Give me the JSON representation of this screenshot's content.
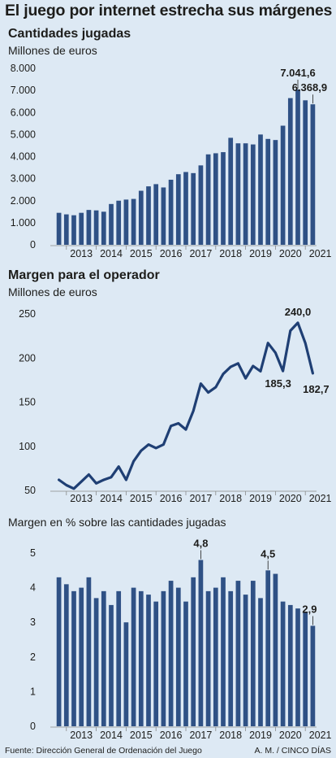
{
  "header": {
    "title": "El juego por internet estrecha sus márgenes"
  },
  "sections": [
    {
      "title": "Cantidades jugadas",
      "subtitle": "Millones de euros"
    },
    {
      "title": "Margen para el operador",
      "subtitle": "Millones de euros"
    },
    {
      "title": "",
      "subtitle": "Margen en % sobre las cantidades jugadas"
    }
  ],
  "footer": {
    "source": "Fuente: Dirección General de Ordenación del Juego",
    "credit": "A. M. / CINCO DÍAS"
  },
  "colors": {
    "bar": "#2f5185",
    "line": "#1f3f74",
    "axis": "#8a8a8a",
    "background": "#dde9f4"
  },
  "chart_data": [
    {
      "type": "bar",
      "title": "Cantidades jugadas",
      "ylabel": "Millones de euros",
      "ylim": [
        0,
        8000
      ],
      "yticks": [
        0,
        1000,
        2000,
        3000,
        4000,
        5000,
        6000,
        7000,
        8000
      ],
      "ytick_labels": [
        "0",
        "1.000",
        "2.000",
        "3.000",
        "4.000",
        "5.000",
        "6.000",
        "7.000",
        "8.000"
      ],
      "xtick_labels": [
        "2013",
        "2014",
        "2015",
        "2016",
        "2017",
        "2018",
        "2019",
        "2020",
        "2021"
      ],
      "values": [
        1450,
        1380,
        1340,
        1450,
        1580,
        1560,
        1500,
        1850,
        2000,
        2050,
        2080,
        2450,
        2650,
        2750,
        2600,
        2950,
        3200,
        3300,
        3250,
        3600,
        4100,
        4150,
        4200,
        4850,
        4600,
        4600,
        4550,
        5000,
        4800,
        4750,
        5400,
        6650,
        7041.6,
        6550,
        6368.9
      ],
      "annotations": [
        {
          "index": 32,
          "label": "7.041,6"
        },
        {
          "index": 34,
          "label": "6.368,9"
        }
      ],
      "grid": false
    },
    {
      "type": "line",
      "title": "Margen para el operador",
      "ylabel": "Millones de euros",
      "ylim": [
        50,
        250
      ],
      "yticks": [
        50,
        100,
        150,
        200,
        250
      ],
      "ytick_labels": [
        "50",
        "100",
        "150",
        "200",
        "250"
      ],
      "xtick_labels": [
        "2013",
        "2014",
        "2015",
        "2016",
        "2017",
        "2018",
        "2019",
        "2020",
        "2021"
      ],
      "values": [
        62,
        56,
        52,
        60,
        68,
        58,
        62,
        65,
        77,
        62,
        83,
        95,
        102,
        98,
        102,
        123,
        126,
        119,
        140,
        171,
        161,
        167,
        182,
        190,
        194,
        177,
        191,
        185,
        217,
        206,
        185.3,
        231,
        240.0,
        217,
        182.7
      ],
      "annotations": [
        {
          "index": 32,
          "label": "240,0"
        },
        {
          "index": 30,
          "label": "185,3"
        },
        {
          "index": 34,
          "label": "182,7"
        }
      ],
      "grid": false
    },
    {
      "type": "bar",
      "title": "",
      "ylabel": "Margen en % sobre las cantidades jugadas",
      "ylim": [
        0,
        5
      ],
      "yticks": [
        0,
        1,
        2,
        3,
        4,
        5
      ],
      "ytick_labels": [
        "0",
        "1",
        "2",
        "3",
        "4",
        "5"
      ],
      "xtick_labels": [
        "2013",
        "2014",
        "2015",
        "2016",
        "2017",
        "2018",
        "2019",
        "2020",
        "2021"
      ],
      "values": [
        4.3,
        4.1,
        3.9,
        4.0,
        4.3,
        3.7,
        3.9,
        3.5,
        3.9,
        3.0,
        4.0,
        3.9,
        3.8,
        3.6,
        3.9,
        4.2,
        4.0,
        3.6,
        4.3,
        4.8,
        3.9,
        4.0,
        4.3,
        3.9,
        4.2,
        3.8,
        4.2,
        3.7,
        4.5,
        4.4,
        3.6,
        3.5,
        3.4,
        3.3,
        2.9
      ],
      "annotations": [
        {
          "index": 19,
          "label": "4,8"
        },
        {
          "index": 28,
          "label": "4,5"
        },
        {
          "index": 34,
          "label": "2,9"
        }
      ],
      "grid": false
    }
  ]
}
